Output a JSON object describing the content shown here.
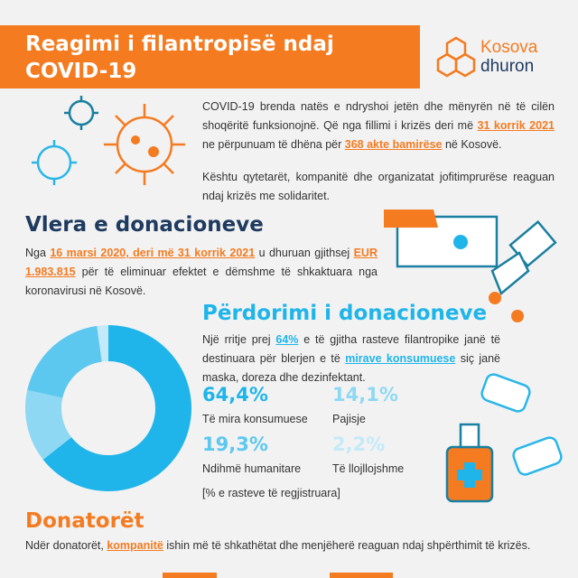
{
  "header": {
    "title_line1": "Reagimi i filantropisë ndaj",
    "title_line2": "COVID-19",
    "logo_line1": "Kosova",
    "logo_line2": "dhuron"
  },
  "intro": {
    "p1": [
      "COVID-19 brenda natës e ndryshoi jetën dhe mënyrën në të cilën shoqëritë funksionojnë. Që nga fillimi i krizës deri më ",
      "31 korrik 2021",
      " ne përpunuam të dhëna për ",
      "368 akte bamirëse",
      " në Kosovë."
    ],
    "p2": [
      "Kështu qytetarët, kompanitë dhe organizatat jofitimprurëse reaguan ndaj krizës me solidaritet."
    ]
  },
  "value_section": {
    "heading": "Vlera e donacioneve",
    "text": [
      "Nga ",
      "16 marsi 2020, deri më 31 korrik 2021",
      " u dhuruan gjithsej ",
      "EUR 1.983.815",
      " për të eliminuar efektet e dëmshme të shkaktuara nga koronavirusi në Kosovë."
    ]
  },
  "usage_section": {
    "heading": "Përdorimi i donacioneve",
    "text": [
      "Një rritje prej ",
      "64%",
      " e të gjitha rasteve filantropike janë të destinuara për blerjen e të ",
      "mirave konsumuese",
      " siç janë maska, doreza dhe dezinfektant."
    ],
    "note": "[% e rasteve të regjistruara]"
  },
  "chart_data": {
    "type": "pie",
    "categories": [
      "Të mira konsumuese",
      "Pajisje",
      "Ndihmë humanitare",
      "Të llojllojshme"
    ],
    "values": [
      64.4,
      14.1,
      19.3,
      2.2
    ],
    "value_labels": [
      "64,4%",
      "14,1%",
      "19,3%",
      "2,2%"
    ],
    "colors": [
      "#1fb5ea",
      "#8fd8f4",
      "#5cc8f0",
      "#c4eaf9"
    ]
  },
  "donors_section": {
    "heading": "Donatorët",
    "text": [
      "Ndër donatorët, ",
      "kompanitë",
      " ishin më të shkathëtat dhe menjëherë reaguan ndaj shpërthimit të krizës."
    ]
  }
}
